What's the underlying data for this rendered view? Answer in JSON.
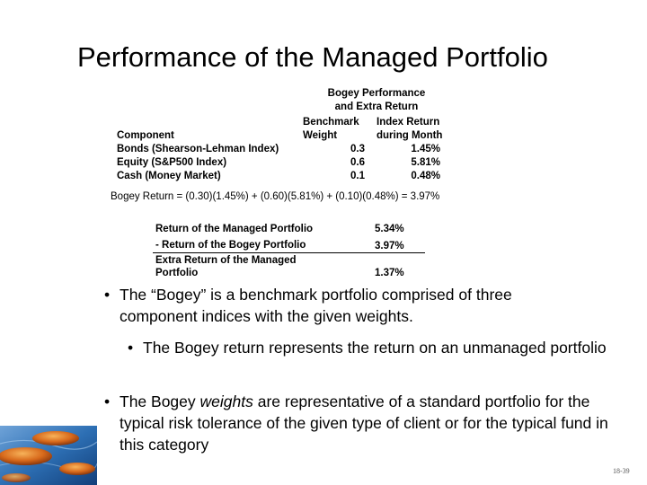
{
  "title": "Performance of the Managed Portfolio",
  "table": {
    "heading_line1": "Bogey Performance",
    "heading_line2": "and Extra Return",
    "col_component": "Component",
    "col_weight_line1": "Benchmark",
    "col_weight_line2": "Weight",
    "col_return_line1": "Index Return",
    "col_return_line2": "during Month",
    "rows": [
      {
        "component": "Bonds (Shearson-Lehman Index)",
        "weight": "0.3",
        "return": "1.45%"
      },
      {
        "component": "Equity (S&P500 Index)",
        "weight": "0.6",
        "return": "5.81%"
      },
      {
        "component": "Cash (Money Market)",
        "weight": "0.1",
        "return": "0.48%"
      }
    ]
  },
  "formula": "Bogey Return = (0.30)(1.45%) + (0.60)(5.81%) + (0.10)(0.48%) = 3.97%",
  "returns": {
    "managed_label": "Return of the Managed Portfolio",
    "managed_value": "5.34%",
    "bogey_label": "- Return of the Bogey Portfolio",
    "bogey_value": "3.97%",
    "extra_label_line1": "Extra Return of the Managed",
    "extra_label_line2": "Portfolio",
    "extra_value": "1.37%"
  },
  "bullets": [
    {
      "bullet": "•",
      "text": "The “Bogey” is a benchmark portfolio comprised of three component indices with the given weights."
    },
    {
      "bullet": "•",
      "text": "The Bogey return represents the return on an unmanaged portfolio"
    },
    {
      "bullet": "•",
      "text_before": "The Bogey ",
      "text_em": "weights",
      "text_after": " are representative of a standard portfolio for the typical risk tolerance of the given type of client or for the typical fund in this category"
    }
  ],
  "slide_number": "18-39",
  "colors": {
    "text": "#000000",
    "background": "#ffffff"
  }
}
